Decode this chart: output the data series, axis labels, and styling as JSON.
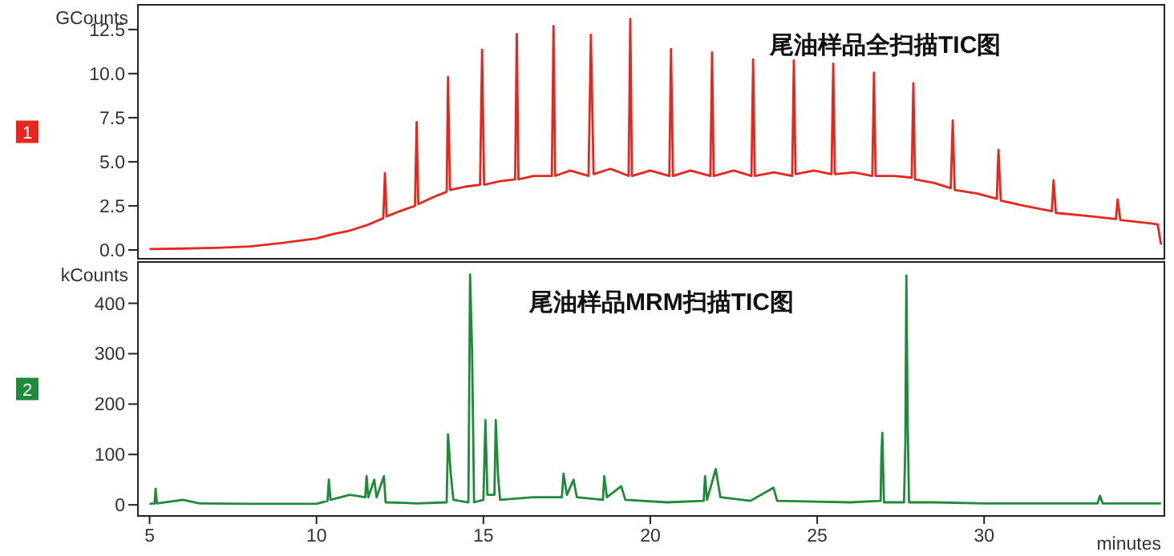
{
  "chart_data": [
    {
      "type": "line",
      "title": "尾油样品全扫描TIC图",
      "ylabel": "GCounts",
      "annotations": [
        "1"
      ],
      "color": "#e8261e",
      "tick_labels": "y",
      "xlim": [
        4.65,
        35.4
      ],
      "ylim": [
        -0.5,
        13.9
      ],
      "yticks": [
        {
          "value": 0,
          "label": "0.0"
        },
        2.5,
        {
          "value": 5,
          "label": "5.0"
        },
        7.5,
        {
          "value": 10,
          "label": "10.0"
        },
        12.5
      ],
      "x": [
        5,
        6,
        7,
        8,
        9,
        10,
        10.5,
        11,
        11.5,
        12.0,
        12.05,
        12.1,
        12.5,
        12.95,
        13.0,
        13.05,
        13.5,
        13.9,
        13.94,
        14.0,
        14.5,
        14.9,
        14.96,
        15.02,
        15.5,
        15.95,
        16.0,
        16.05,
        16.5,
        17.05,
        17.1,
        17.15,
        17.6,
        18.15,
        18.22,
        18.3,
        18.8,
        19.35,
        19.4,
        19.45,
        20.0,
        20.57,
        20.62,
        20.68,
        21.2,
        21.8,
        21.85,
        21.9,
        22.5,
        23.03,
        23.08,
        23.13,
        23.7,
        24.25,
        24.3,
        24.35,
        24.9,
        25.43,
        25.48,
        25.53,
        26.1,
        26.65,
        26.7,
        26.75,
        27.3,
        27.83,
        27.88,
        27.93,
        28.5,
        29.0,
        29.06,
        29.12,
        29.8,
        30.38,
        30.43,
        30.5,
        31.2,
        32.03,
        32.08,
        32.15,
        33.0,
        33.95,
        34.0,
        34.08,
        35.0,
        35.2,
        35.3
      ],
      "values": [
        0.05,
        0.08,
        0.12,
        0.2,
        0.4,
        0.65,
        0.9,
        1.1,
        1.4,
        1.8,
        4.35,
        1.9,
        2.2,
        2.5,
        7.25,
        2.6,
        3.0,
        3.3,
        9.8,
        3.4,
        3.6,
        3.7,
        11.35,
        3.7,
        3.9,
        4.0,
        12.25,
        4.0,
        4.2,
        4.2,
        12.7,
        4.2,
        4.5,
        4.2,
        12.2,
        4.3,
        4.6,
        4.2,
        13.1,
        4.2,
        4.5,
        4.2,
        11.4,
        4.2,
        4.5,
        4.2,
        11.2,
        4.2,
        4.5,
        4.2,
        10.8,
        4.2,
        4.4,
        4.2,
        10.75,
        4.3,
        4.5,
        4.3,
        10.57,
        4.3,
        4.4,
        4.2,
        10.05,
        4.2,
        4.2,
        4.1,
        9.45,
        4.0,
        3.8,
        3.5,
        7.34,
        3.4,
        3.2,
        2.9,
        5.68,
        2.8,
        2.5,
        2.2,
        3.96,
        2.1,
        1.95,
        1.75,
        2.87,
        1.7,
        1.5,
        1.45,
        0.3
      ]
    },
    {
      "type": "line",
      "title": "尾油样品MRM扫描TIC图",
      "ylabel": "kCounts",
      "xlabel": "minutes",
      "annotations": [
        "2"
      ],
      "color": "#1e8a3a",
      "xlim": [
        4.65,
        35.4
      ],
      "xticks": [
        5,
        10,
        15,
        20,
        25,
        30
      ],
      "ylim": [
        -22,
        482
      ],
      "yticks": [
        0,
        100,
        200,
        300,
        400
      ],
      "x": [
        5,
        5.15,
        5.18,
        5.22,
        6,
        6.5,
        8,
        10,
        10.33,
        10.37,
        10.42,
        11.0,
        11.46,
        11.5,
        11.55,
        11.73,
        11.8,
        12.02,
        12.07,
        13,
        13.9,
        13.94,
        14.02,
        14.1,
        14.55,
        14.6,
        14.66,
        14.72,
        15.0,
        15.06,
        15.12,
        15.33,
        15.37,
        15.44,
        15.5,
        16.5,
        17.35,
        17.4,
        17.5,
        17.7,
        17.8,
        18.58,
        18.62,
        18.7,
        19.13,
        19.25,
        20.5,
        21.6,
        21.64,
        21.7,
        21.96,
        22.1,
        23.0,
        23.69,
        23.8,
        26.0,
        26.9,
        26.92,
        26.95,
        27.0,
        27.6,
        27.64,
        27.67,
        27.71,
        27.75,
        28.5,
        30,
        33.4,
        33.47,
        33.55,
        35.3
      ],
      "values": [
        2,
        3,
        32,
        3,
        10,
        3,
        2,
        2,
        8,
        50,
        10,
        20,
        15,
        57,
        15,
        50,
        15,
        57,
        5,
        3,
        5,
        140,
        63,
        10,
        5,
        457,
        307,
        5,
        10,
        168,
        20,
        20,
        168,
        57,
        10,
        15,
        15,
        62,
        20,
        50,
        15,
        10,
        57,
        15,
        37,
        10,
        5,
        8,
        57,
        10,
        71,
        15,
        8,
        34,
        8,
        5,
        8,
        92,
        143,
        5,
        5,
        120,
        455,
        163,
        5,
        5,
        3,
        3,
        18,
        3,
        3
      ]
    }
  ]
}
